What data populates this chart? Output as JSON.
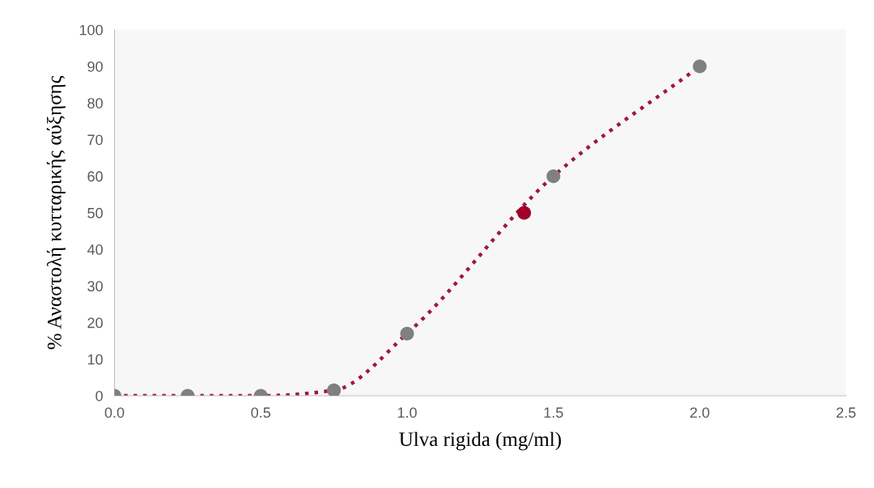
{
  "chart_data": {
    "type": "line",
    "xlabel": "Ulva rigida (mg/ml)",
    "ylabel": "% Αναστολή κυτταρικής αύξησης",
    "x": [
      0,
      0.25,
      0.5,
      0.75,
      1.0,
      1.5,
      2.0
    ],
    "series": [
      {
        "color": "#a0173d",
        "line_style": "dotted",
        "values": [
          0,
          0,
          0,
          1.5,
          17,
          60,
          90
        ]
      },
      {
        "type": "scatter",
        "color": "#808080",
        "marker": "circle",
        "values": [
          0,
          0,
          0,
          1.5,
          17,
          60,
          90
        ]
      },
      {
        "type": "scatter",
        "color": "#a0002a",
        "marker": "circle",
        "x": [
          1.4
        ],
        "values": [
          50
        ]
      }
    ],
    "xlim": [
      0,
      2.5
    ],
    "xticks": [
      {
        "value": 0,
        "label": "0.0"
      },
      0.5,
      {
        "value": 1,
        "label": "1.0"
      },
      1.5,
      {
        "value": 2,
        "label": "2.0"
      },
      2.5
    ],
    "ylim": [
      0,
      100
    ],
    "yticks": [
      0,
      10,
      20,
      30,
      40,
      50,
      60,
      70,
      80,
      90,
      100
    ],
    "grid": false
  }
}
